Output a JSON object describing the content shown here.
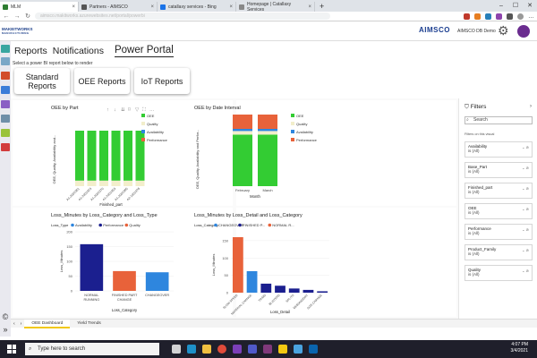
{
  "browser": {
    "tabs": [
      {
        "label": "MLM",
        "active": true,
        "color": "#2e7d32"
      },
      {
        "label": "Partners - AIMSCO",
        "active": false,
        "color": "#555555"
      },
      {
        "label": "catallaxy services - Bing",
        "active": false,
        "color": "#1a73e8"
      },
      {
        "label": "Homepage | Catallaxy Services",
        "active": false,
        "color": "#888888"
      }
    ],
    "new_tab": "+",
    "url": "aimsco.makitworks.azurewebsites.net/portal/powerbi",
    "window_controls": [
      "–",
      "☐",
      "✕"
    ]
  },
  "app": {
    "logo_line1": "MAKEITWORKS",
    "logo_line2": "MANUFACTURING",
    "brand": "AIMSCO",
    "org_name": "AIMSCO DB Demo",
    "brand_color": "#1a3d8f",
    "avatar_color": "#6a2c8f"
  },
  "nav": {
    "tabs": [
      "Reports",
      "Notifications",
      "Power Portal"
    ],
    "active": "Power Portal",
    "hint": "Select a power BI report below to render",
    "report_buttons": [
      "Standard\nReports",
      "OEE Reports",
      "IoT Reports"
    ]
  },
  "colors": {
    "oee": "#33cc33",
    "quality": "#f2eecb",
    "availability": "#2e86de",
    "performance": "#e8623a",
    "navy": "#1b1f8f",
    "orange": "#e8623a",
    "blue": "#2e86de"
  },
  "chart_data": [
    {
      "id": "oee_by_part",
      "type": "bar",
      "title": "OEE by Part",
      "ylabel": "OEE, Quality, Availability and...",
      "xlabel": "Finished_part",
      "categories": [
        "A1-2001951",
        "A1-2001923",
        "A1-2001970",
        "A1-2001953",
        "A1-2001965",
        "A2-1001976"
      ],
      "series": [
        {
          "name": "Performance",
          "values": [
            0,
            0,
            0,
            0,
            0,
            0
          ]
        },
        {
          "name": "Availability",
          "values": [
            0,
            0,
            0,
            0,
            0,
            0
          ]
        },
        {
          "name": "Quality",
          "values": [
            0.1,
            0.1,
            0.1,
            0.1,
            0.1,
            0.1
          ]
        },
        {
          "name": "OEE",
          "values": [
            0.9,
            0.9,
            0.9,
            0.9,
            0.9,
            0.9
          ]
        }
      ],
      "legend": [
        "OEE",
        "Quality",
        "Availability",
        "Performance"
      ]
    },
    {
      "id": "oee_by_date",
      "type": "bar",
      "title": "OEE by Date Interval",
      "ylabel": "OEE, Quality, Availability and Perfor...",
      "xlabel": "Month",
      "categories": [
        "February",
        "March"
      ],
      "series": [
        {
          "name": "OEE",
          "values": [
            0.72,
            0.72
          ]
        },
        {
          "name": "Quality",
          "values": [
            0.05,
            0.05
          ]
        },
        {
          "name": "Availability",
          "values": [
            0.03,
            0.03
          ]
        },
        {
          "name": "Performance",
          "values": [
            0.2,
            0.2
          ]
        }
      ],
      "legend": [
        "OEE",
        "Quality",
        "Availability",
        "Performance"
      ]
    },
    {
      "id": "loss_by_category",
      "type": "bar",
      "title": "Loss_Minutes by Loss_Category and Loss_Type",
      "legend_title": "Loss_Type",
      "legend": [
        "Availability",
        "Performance",
        "Quality"
      ],
      "ylabel": "Loss_Minutes",
      "xlabel": "Loss_Category",
      "yticks": [
        "0",
        "50",
        "100",
        "150",
        "200"
      ],
      "ylim": [
        0,
        200
      ],
      "categories": [
        "NORMAL RUNNING",
        "FINISHED PART CHANGE",
        "CHANGEOVER"
      ],
      "values": [
        158,
        67,
        63
      ],
      "bar_colors": [
        "navy",
        "orange",
        "blue"
      ]
    },
    {
      "id": "loss_by_detail",
      "type": "bar",
      "title": "Loss_Minutes by Loss_Detail and Loss_Category",
      "legend_title": "Loss_Category",
      "legend": [
        "CHANGEOVER",
        "FINISHED P...",
        "NORMAL R..."
      ],
      "ylabel": "Loss_Minutes",
      "xlabel": "Loss_Detail",
      "yticks": [
        "0",
        "50",
        "100",
        "150"
      ],
      "ylim": [
        0,
        160
      ],
      "categories": [
        "SLOW SPEED",
        "MATERIAL CHANGE",
        "TRIMS",
        "BLISTERS",
        "SPLITS",
        "DEBOND/DRY",
        "SIZE CHANGE"
      ],
      "values": [
        160,
        62,
        26,
        20,
        12,
        8,
        4
      ],
      "bar_colors": [
        "orange",
        "blue",
        "navy",
        "navy",
        "navy",
        "navy",
        "navy"
      ]
    }
  ],
  "filters": {
    "title": "Filters",
    "search_placeholder": "Search",
    "section": "Filters on this visual",
    "items": [
      {
        "name": "Availability",
        "value": "is (All)"
      },
      {
        "name": "Base_Part",
        "value": "is (All)"
      },
      {
        "name": "Finished_part",
        "value": "is (All)"
      },
      {
        "name": "OEE",
        "value": "is (All)"
      },
      {
        "name": "Performance",
        "value": "is (All)"
      },
      {
        "name": "Product_Family",
        "value": "is (All)"
      },
      {
        "name": "Quality",
        "value": "is (All)"
      }
    ]
  },
  "page_tabs": [
    "OEE Dashboard",
    "Yield Trends"
  ],
  "taskbar": {
    "search_placeholder": "Type here to search",
    "time": "4:07 PM",
    "date": "3/4/2021"
  }
}
